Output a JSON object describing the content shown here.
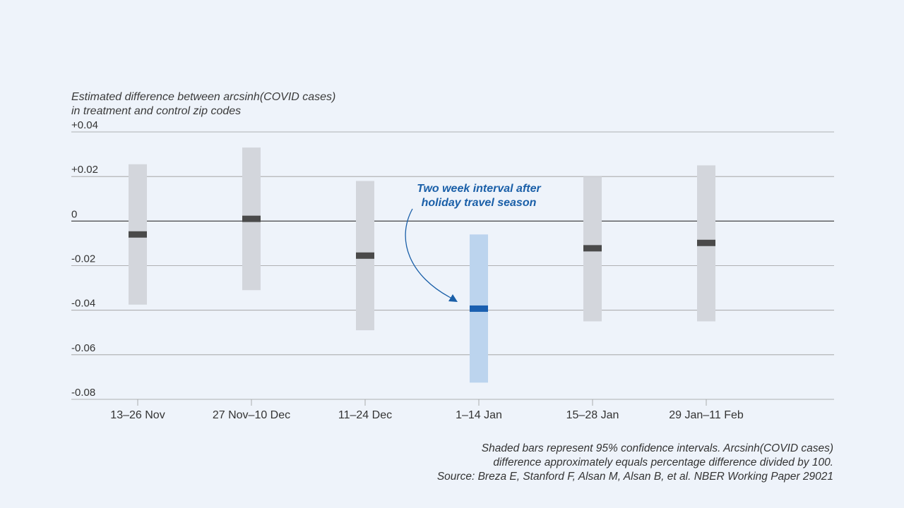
{
  "chart_data": {
    "type": "interval",
    "ylabel_lines": [
      "Estimated difference between arcsinh(COVID cases)",
      "in treatment and control zip codes"
    ],
    "ylim": [
      -0.08,
      0.04
    ],
    "yticks": [
      {
        "value": 0.04,
        "label": "+0.04"
      },
      {
        "value": 0.02,
        "label": "+0.02"
      },
      {
        "value": 0,
        "label": "0"
      },
      {
        "value": -0.02,
        "label": "-0.02"
      },
      {
        "value": -0.04,
        "label": "-0.04"
      },
      {
        "value": -0.06,
        "label": "-0.06"
      },
      {
        "value": -0.08,
        "label": "-0.08"
      }
    ],
    "categories": [
      "13–26 Nov",
      "27 Nov–10 Dec",
      "11–24 Dec",
      "1–14 Jan",
      "15–28 Jan",
      "29 Jan–11 Feb"
    ],
    "estimates": [
      -0.006,
      0.001,
      -0.0155,
      -0.0393,
      -0.0122,
      -0.0098
    ],
    "ci_low": [
      -0.0375,
      -0.031,
      -0.049,
      -0.0725,
      -0.045,
      -0.045
    ],
    "ci_high": [
      0.0255,
      0.033,
      0.018,
      -0.006,
      0.02,
      0.025
    ],
    "highlight_index": 3,
    "annotation_lines": [
      "Two week interval after",
      "holiday travel season"
    ],
    "grid": true,
    "colors": {
      "ci": "#d3d6dc",
      "estimate": "#4a4a4a",
      "ci_highlight": "#bcd4ee",
      "estimate_highlight": "#1a5fb0",
      "annotation": "#1a5fa8",
      "grid": "#9a9a9a",
      "zero_line": "#333333"
    }
  },
  "footnote_lines": [
    "Shaded bars represent 95% confidence intervals. Arcsinh(COVID cases)",
    "difference approximately equals percentage difference divided by 100.",
    "Source: Breza E, Stanford F, Alsan M, Alsan B, et al. NBER Working Paper 29021"
  ]
}
